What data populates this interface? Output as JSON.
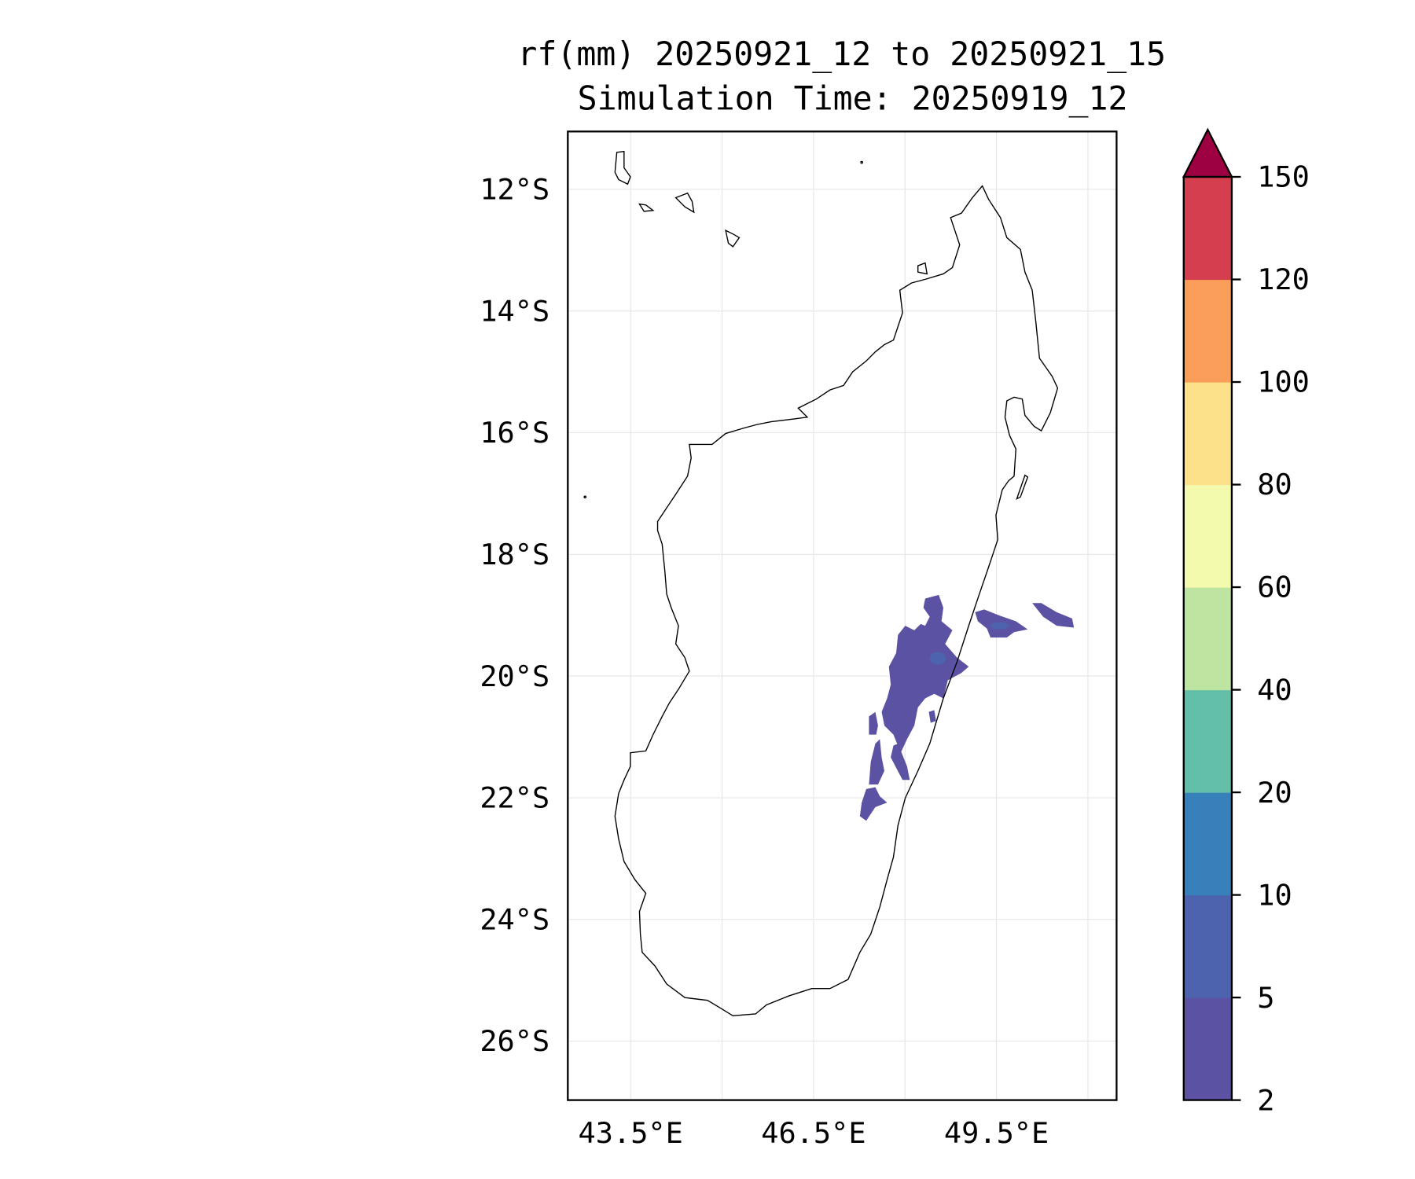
{
  "chart_data": {
    "type": "heatmap",
    "map_kind": "filled-contour rainfall map",
    "title_line1": "rf(mm) 20250921_12 to 20250921_15",
    "title_line2": "Simulation Time: 20250919_12",
    "lon_range": [
      42.47,
      51.47
    ],
    "lat_range": [
      -26.97,
      -11.05
    ],
    "lon_ticks": [
      43.5,
      46.5,
      49.5
    ],
    "lon_tick_labels": [
      "43.5°E",
      "46.5°E",
      "49.5°E"
    ],
    "lon_gridlines": [
      43.5,
      45.0,
      46.5,
      48.0,
      49.5,
      51.0
    ],
    "lat_ticks": [
      -12,
      -14,
      -16,
      -18,
      -20,
      -22,
      -24,
      -26
    ],
    "lat_tick_labels": [
      "12°S",
      "14°S",
      "16°S",
      "18°S",
      "20°S",
      "22°S",
      "24°S",
      "26°S"
    ],
    "grid": true,
    "colorbar": {
      "levels": [
        2,
        5,
        10,
        20,
        40,
        60,
        80,
        100,
        120,
        150
      ],
      "level_labels": [
        "2",
        "5",
        "10",
        "20",
        "40",
        "60",
        "80",
        "100",
        "120",
        "150"
      ],
      "colors": [
        "#5c52a3",
        "#4d63ad",
        "#3880b9",
        "#64bfa9",
        "#bde4a0",
        "#f3f9ad",
        "#fce08a",
        "#f99d59",
        "#d53e4f"
      ],
      "extend_max_color": "#9e0142",
      "placement": "right"
    },
    "rain_color": "#5c52a3",
    "rain_peak_color": "#4d63ad"
  }
}
